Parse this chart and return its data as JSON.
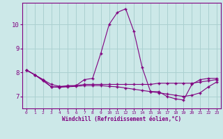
{
  "xlabel": "Windchill (Refroidissement éolien,°C)",
  "x_ticks": [
    0,
    1,
    2,
    3,
    4,
    5,
    6,
    7,
    8,
    9,
    10,
    11,
    12,
    13,
    14,
    15,
    16,
    17,
    18,
    19,
    20,
    21,
    22,
    23
  ],
  "ylim": [
    6.5,
    10.9
  ],
  "yticks": [
    7,
    8,
    9,
    10
  ],
  "line1_x": [
    0,
    1,
    2,
    3,
    4,
    5,
    6,
    7,
    8,
    9,
    10,
    11,
    12,
    13,
    14,
    15,
    16,
    17,
    18,
    19,
    20,
    21,
    22,
    23
  ],
  "line1_y": [
    8.1,
    7.9,
    7.7,
    7.4,
    7.4,
    7.45,
    7.45,
    7.7,
    7.75,
    8.8,
    10.0,
    10.5,
    10.65,
    9.7,
    8.2,
    7.2,
    7.2,
    7.0,
    6.9,
    6.85,
    7.5,
    7.7,
    7.75,
    7.75
  ],
  "line2_x": [
    0,
    1,
    2,
    3,
    4,
    5,
    6,
    7,
    8,
    9,
    10,
    11,
    12,
    13,
    14,
    15,
    16,
    17,
    18,
    19,
    20,
    21,
    22,
    23
  ],
  "line2_y": [
    8.1,
    7.9,
    7.7,
    7.5,
    7.42,
    7.42,
    7.45,
    7.5,
    7.5,
    7.5,
    7.5,
    7.5,
    7.5,
    7.5,
    7.5,
    7.5,
    7.55,
    7.55,
    7.55,
    7.55,
    7.55,
    7.6,
    7.65,
    7.7
  ],
  "line3_x": [
    0,
    1,
    2,
    3,
    4,
    5,
    6,
    7,
    8,
    9,
    10,
    11,
    12,
    13,
    14,
    15,
    16,
    17,
    18,
    19,
    20,
    21,
    22,
    23
  ],
  "line3_y": [
    8.1,
    7.9,
    7.65,
    7.4,
    7.38,
    7.4,
    7.42,
    7.45,
    7.45,
    7.45,
    7.42,
    7.4,
    7.35,
    7.3,
    7.25,
    7.2,
    7.15,
    7.1,
    7.05,
    7.0,
    7.05,
    7.15,
    7.4,
    7.6
  ],
  "line_color": "#800080",
  "bg_color": "#cce8e8",
  "grid_color": "#aad0d0",
  "axis_color": "#800080",
  "tick_label_color": "#800080",
  "xlabel_color": "#800080"
}
